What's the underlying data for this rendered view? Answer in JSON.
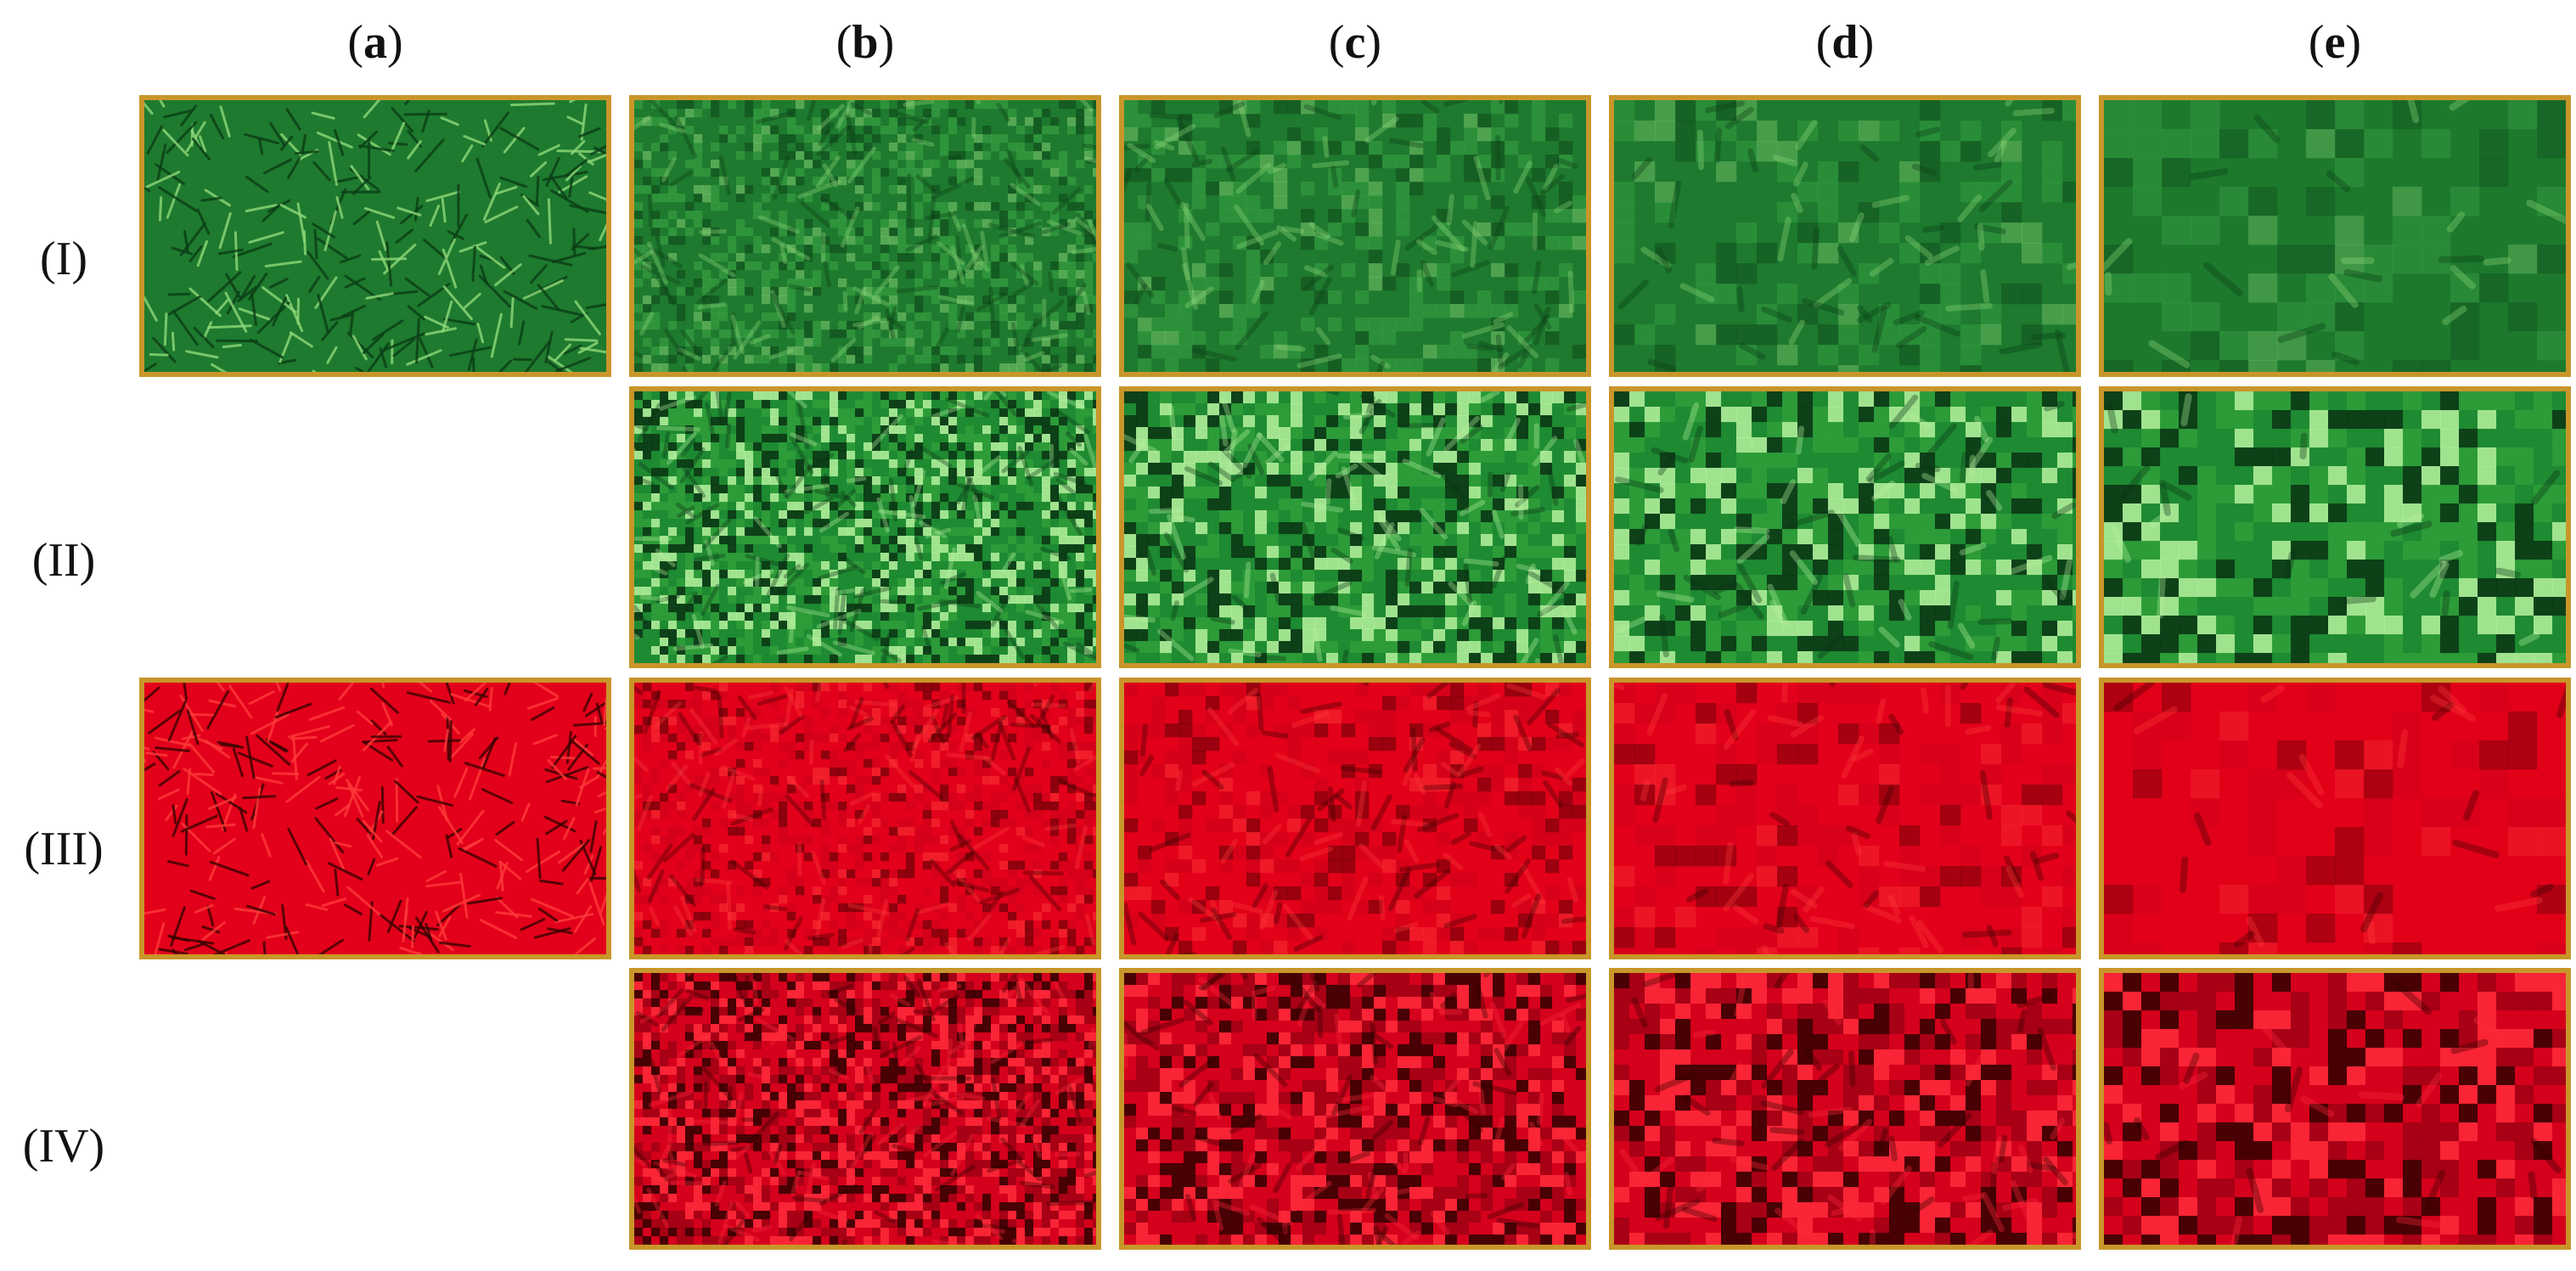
{
  "columns": [
    "a",
    "b",
    "c",
    "d",
    "e"
  ],
  "rows": [
    "(I)",
    "(II)",
    "(III)",
    "(IV)"
  ],
  "panel_border_color": "#c8962a",
  "row_styles": [
    {
      "kind": "green-blurred",
      "base": "#1e7a2e",
      "light": "#8fd97a",
      "dark": "#0b3d16",
      "accent": "#3fae4a"
    },
    {
      "kind": "green-blocky",
      "base": "#1f8a32",
      "light": "#b7f2a0",
      "dark": "#0a3414",
      "accent": "#2f9e3a"
    },
    {
      "kind": "red-blurred",
      "base": "#e3001a",
      "light": "#ff3a3a",
      "dark": "#3a0000",
      "accent": "#c8001a"
    },
    {
      "kind": "red-blocky",
      "base": "#d5001c",
      "light": "#ff2a3a",
      "dark": "#300000",
      "accent": "#a00014"
    }
  ],
  "panels_present": [
    [
      true,
      true,
      true,
      true,
      true
    ],
    [
      false,
      true,
      true,
      true,
      true
    ],
    [
      true,
      true,
      true,
      true,
      true
    ],
    [
      false,
      true,
      true,
      true,
      true
    ]
  ]
}
